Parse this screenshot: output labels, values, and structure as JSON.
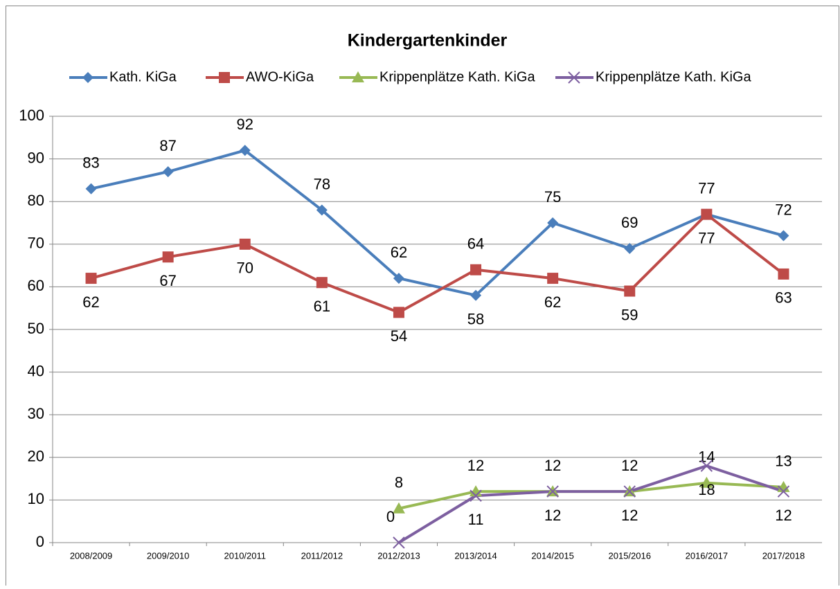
{
  "chart_data": {
    "type": "line",
    "title": "Kindergartenkinder",
    "categories": [
      "2008/2009",
      "2009/2010",
      "2010/2011",
      "2011/2012",
      "2012/2013",
      "2013/2014",
      "2014/2015",
      "2015/2016",
      "2016/2017",
      "2017/2018"
    ],
    "series": [
      {
        "name": "Kath. KiGa",
        "color": "#4a7ebb",
        "marker": "diamond",
        "values": [
          83,
          87,
          92,
          78,
          62,
          58,
          75,
          69,
          77,
          72
        ]
      },
      {
        "name": "AWO-KiGa",
        "color": "#be4b48",
        "marker": "square",
        "values": [
          62,
          67,
          70,
          61,
          54,
          64,
          62,
          59,
          77,
          63
        ]
      },
      {
        "name": "Krippenplätze Kath. KiGa",
        "color": "#98b954",
        "marker": "triangle",
        "values": [
          null,
          null,
          null,
          null,
          8,
          12,
          12,
          12,
          14,
          13
        ]
      },
      {
        "name": "Krippenplätze Kath. KiGa",
        "color": "#7d5fa0",
        "marker": "x",
        "values": [
          null,
          null,
          null,
          null,
          0,
          11,
          12,
          12,
          18,
          12
        ]
      }
    ],
    "ylim": [
      0,
      100
    ],
    "yticks": [
      0,
      10,
      20,
      30,
      40,
      50,
      60,
      70,
      80,
      90,
      100
    ],
    "grid": true,
    "legend": "top"
  }
}
